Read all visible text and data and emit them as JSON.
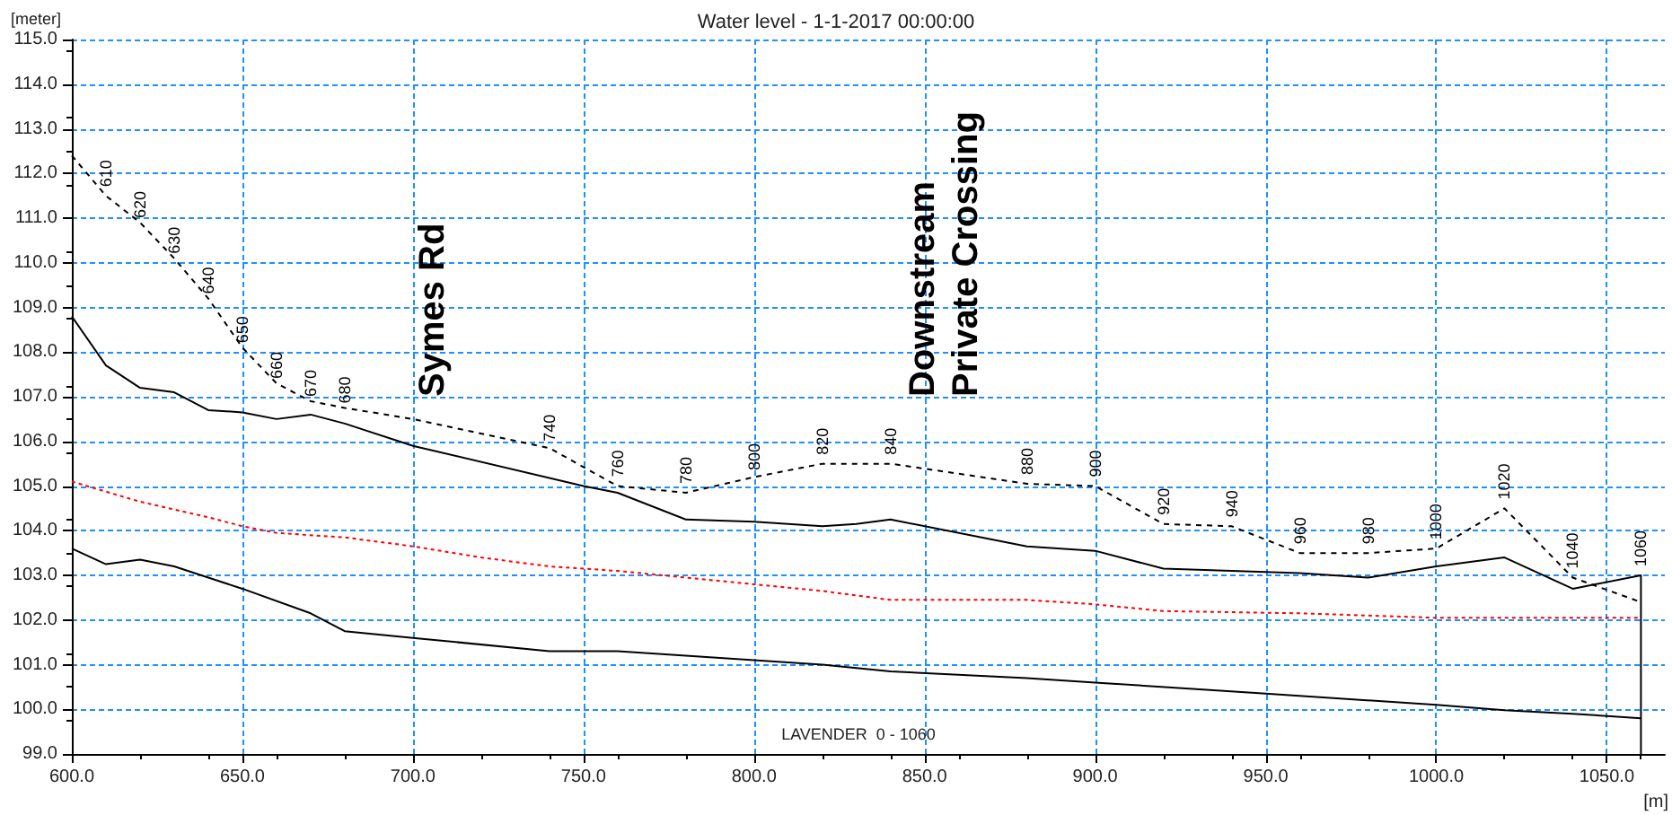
{
  "chart_data": {
    "type": "line",
    "title": "Water level - 1-1-2017 00:00:00",
    "xlabel": "[m]",
    "ylabel": "[meter]",
    "xlim": [
      600,
      1067
    ],
    "ylim": [
      99,
      115
    ],
    "xticks": [
      {
        "value": 600,
        "label": "600.0"
      },
      {
        "value": 650,
        "label": "650.0"
      },
      {
        "value": 700,
        "label": "700.0"
      },
      {
        "value": 750,
        "label": "750.0"
      },
      {
        "value": 800,
        "label": "800.0"
      },
      {
        "value": 850,
        "label": "850.0"
      },
      {
        "value": 900,
        "label": "900.0"
      },
      {
        "value": 950,
        "label": "950.0"
      },
      {
        "value": 1000,
        "label": "1000.0"
      },
      {
        "value": 1050,
        "label": "1050.0"
      }
    ],
    "yticks": [
      {
        "value": 99,
        "label": "99.0"
      },
      {
        "value": 100,
        "label": "100.0"
      },
      {
        "value": 101,
        "label": "101.0"
      },
      {
        "value": 102,
        "label": "102.0"
      },
      {
        "value": 103,
        "label": "103.0"
      },
      {
        "value": 104,
        "label": "104.0"
      },
      {
        "value": 105,
        "label": "105.0"
      },
      {
        "value": 106,
        "label": "106.0"
      },
      {
        "value": 107,
        "label": "107.0"
      },
      {
        "value": 108,
        "label": "108.0"
      },
      {
        "value": 109,
        "label": "109.0"
      },
      {
        "value": 110,
        "label": "110.0"
      },
      {
        "value": 111,
        "label": "111.0"
      },
      {
        "value": 112,
        "label": "112.0"
      },
      {
        "value": 113,
        "label": "113.0"
      },
      {
        "value": 114,
        "label": "114.0"
      },
      {
        "value": 115,
        "label": "115.0"
      }
    ],
    "grid": true,
    "marker": "none",
    "series": [
      {
        "color": "#000000",
        "line_style": "dashed",
        "x": [
          600,
          610,
          620,
          630,
          640,
          650,
          660,
          670,
          680,
          700,
          740,
          760,
          780,
          800,
          820,
          840,
          880,
          900,
          920,
          940,
          960,
          980,
          1000,
          1020,
          1040,
          1060
        ],
        "values": [
          112.4,
          111.5,
          110.9,
          110.1,
          109.2,
          108.1,
          107.3,
          106.9,
          106.75,
          106.5,
          105.85,
          105.0,
          104.85,
          105.2,
          105.5,
          105.5,
          105.05,
          105.0,
          104.15,
          104.1,
          103.5,
          103.5,
          103.6,
          104.5,
          102.95,
          102.4
        ]
      },
      {
        "color": "#000000",
        "line_style": "solid",
        "x": [
          600,
          610,
          620,
          630,
          640,
          650,
          660,
          670,
          680,
          700,
          750,
          760,
          780,
          800,
          820,
          830,
          840,
          880,
          900,
          920,
          940,
          960,
          980,
          1000,
          1020,
          1040,
          1060,
          1060
        ],
        "values": [
          108.8,
          107.7,
          107.2,
          107.1,
          106.7,
          106.65,
          106.5,
          106.6,
          106.4,
          105.9,
          105.0,
          104.85,
          104.25,
          104.2,
          104.1,
          104.15,
          104.25,
          103.65,
          103.55,
          103.15,
          103.1,
          103.05,
          102.95,
          103.2,
          103.4,
          102.7,
          103.0,
          99.0
        ]
      },
      {
        "color": "#ff0000",
        "line_style": "dotted",
        "x": [
          600,
          620,
          640,
          650,
          660,
          680,
          700,
          720,
          740,
          760,
          780,
          800,
          820,
          840,
          880,
          900,
          920,
          960,
          1000,
          1060
        ],
        "values": [
          105.1,
          104.65,
          104.3,
          104.1,
          103.95,
          103.85,
          103.65,
          103.4,
          103.2,
          103.1,
          102.95,
          102.8,
          102.65,
          102.45,
          102.45,
          102.35,
          102.2,
          102.15,
          102.05,
          102.05
        ]
      },
      {
        "color": "#000000",
        "line_style": "solid",
        "x": [
          600,
          610,
          620,
          630,
          640,
          650,
          670,
          680,
          700,
          740,
          760,
          780,
          800,
          820,
          840,
          880,
          900,
          950,
          1000,
          1020,
          1040,
          1060
        ],
        "values": [
          103.6,
          103.25,
          103.35,
          103.2,
          102.95,
          102.7,
          102.15,
          101.75,
          101.6,
          101.3,
          101.3,
          101.2,
          101.1,
          101.0,
          100.85,
          100.7,
          100.6,
          100.35,
          100.1,
          99.98,
          99.9,
          99.8
        ]
      }
    ],
    "annotations": [
      {
        "text": "610",
        "x": 610,
        "y": 111.7
      },
      {
        "text": "620",
        "x": 620,
        "y": 111.0
      },
      {
        "text": "630",
        "x": 630,
        "y": 110.2
      },
      {
        "text": "640",
        "x": 640,
        "y": 109.3
      },
      {
        "text": "650",
        "x": 650,
        "y": 108.2
      },
      {
        "text": "660",
        "x": 660,
        "y": 107.4
      },
      {
        "text": "670",
        "x": 670,
        "y": 107.0
      },
      {
        "text": "680",
        "x": 680,
        "y": 106.85
      },
      {
        "text": "740",
        "x": 740,
        "y": 106.0
      },
      {
        "text": "760",
        "x": 760,
        "y": 105.2
      },
      {
        "text": "780",
        "x": 780,
        "y": 105.05
      },
      {
        "text": "800",
        "x": 800,
        "y": 105.35
      },
      {
        "text": "820",
        "x": 820,
        "y": 105.7
      },
      {
        "text": "840",
        "x": 840,
        "y": 105.7
      },
      {
        "text": "880",
        "x": 880,
        "y": 105.25
      },
      {
        "text": "900",
        "x": 900,
        "y": 105.2
      },
      {
        "text": "920",
        "x": 920,
        "y": 104.35
      },
      {
        "text": "940",
        "x": 940,
        "y": 104.3
      },
      {
        "text": "960",
        "x": 960,
        "y": 103.7
      },
      {
        "text": "980",
        "x": 980,
        "y": 103.7
      },
      {
        "text": "1000",
        "x": 1000,
        "y": 103.8
      },
      {
        "text": "1020",
        "x": 1020,
        "y": 104.7
      },
      {
        "text": "1040",
        "x": 1040,
        "y": 103.15
      },
      {
        "text": "1060",
        "x": 1060,
        "y": 103.2
      },
      "Symes Rd",
      "Downstream\nPrivate Crossing",
      "LAVENDER  0 - 1060"
    ]
  }
}
